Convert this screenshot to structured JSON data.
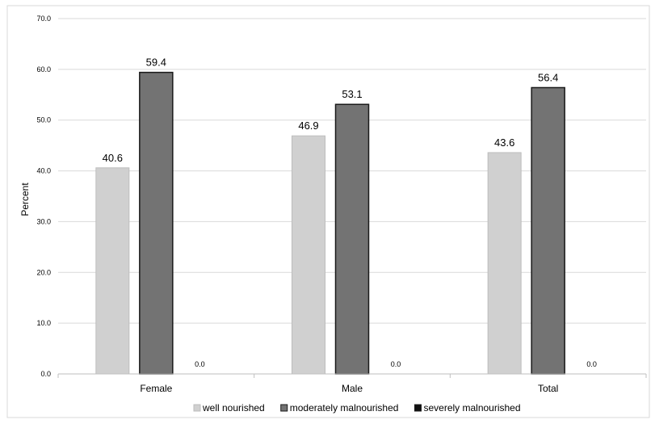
{
  "chart_data": {
    "type": "bar",
    "title": "",
    "xlabel": "",
    "ylabel": "Percent",
    "ylim": [
      0,
      70
    ],
    "yticks": [
      "0.0",
      "10.0",
      "20.0",
      "30.0",
      "40.0",
      "50.0",
      "60.0",
      "70.0"
    ],
    "categories": [
      "Female",
      "Male",
      "Total"
    ],
    "series": [
      {
        "name": "well nourished",
        "color": "#d0d0d0",
        "values": [
          40.6,
          46.9,
          43.6
        ],
        "labels": [
          "40.6",
          "46.9",
          "43.6"
        ]
      },
      {
        "name": "moderately malnourished",
        "color": "#737373",
        "values": [
          59.4,
          53.1,
          56.4
        ],
        "labels": [
          "59.4",
          "53.1",
          "56.4"
        ]
      },
      {
        "name": "severely malnourished",
        "color": "#111111",
        "values": [
          0.0,
          0.0,
          0.0
        ],
        "labels": [
          "0.0",
          "0.0",
          "0.0"
        ]
      }
    ],
    "grid": true,
    "legend_position": "bottom"
  }
}
